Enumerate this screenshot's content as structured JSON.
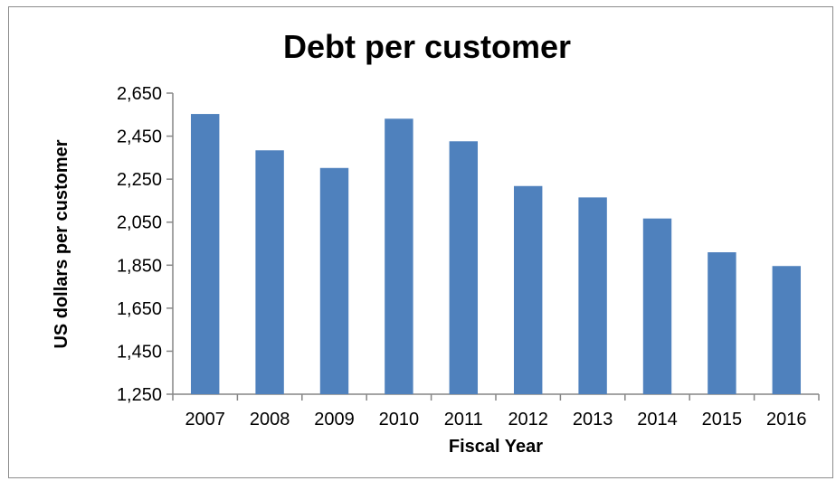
{
  "chart_data": {
    "type": "bar",
    "title": "Debt per customer",
    "xlabel": "Fiscal Year",
    "ylabel": "US dollars per customer",
    "categories": [
      "2007",
      "2008",
      "2009",
      "2010",
      "2011",
      "2012",
      "2013",
      "2014",
      "2015",
      "2016"
    ],
    "values": [
      2553,
      2384,
      2302,
      2531,
      2426,
      2218,
      2165,
      2067,
      1910,
      1846
    ],
    "ylim": [
      1250,
      2650
    ],
    "yticks": [
      1250,
      1450,
      1650,
      1850,
      2050,
      2250,
      2450,
      2650
    ],
    "ytick_labels": [
      "1,250",
      "1,450",
      "1,650",
      "1,850",
      "2,050",
      "2,250",
      "2,450",
      "2,650"
    ],
    "grid": false,
    "legend": "none",
    "bar_color": "#4f81bd",
    "axis_color": "#868686"
  }
}
